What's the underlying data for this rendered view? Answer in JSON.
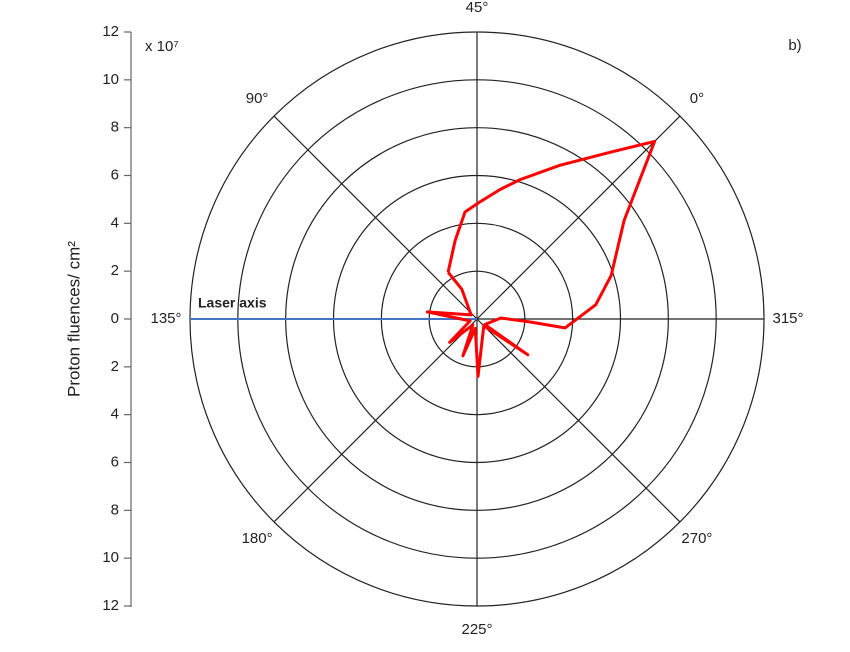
{
  "chart_data": {
    "type": "polar",
    "panel_label": "b)",
    "ylabel": "Proton fluences/ cm²",
    "multiplier": "x 10⁷",
    "annotation": "Laser axis",
    "laser_axis": {
      "theta": 135,
      "color": "#4472c4"
    },
    "rlim": [
      0,
      12
    ],
    "rticks": [
      0,
      2,
      4,
      6,
      8,
      10,
      12
    ],
    "angle_ticks": [
      {
        "value": 0,
        "label": "0°"
      },
      {
        "value": 45,
        "label": "45°"
      },
      {
        "value": 90,
        "label": "90°"
      },
      {
        "value": 135,
        "label": "135°"
      },
      {
        "value": 180,
        "label": "180°"
      },
      {
        "value": 225,
        "label": "225°"
      },
      {
        "value": 270,
        "label": "270°"
      },
      {
        "value": 315,
        "label": "315°"
      }
    ],
    "series": [
      {
        "color": "#ff0000",
        "theta": [
          76.7,
          60.6,
          51.4,
          43.5,
          34.9,
          27.8,
          16.7,
          6.5,
          0,
          348.8,
          333,
          321.8,
          309.2,
          311.8,
          317.5,
          280,
          279.8,
          270,
          226,
          215,
          204,
          190,
          175.4,
          150,
          126.9,
          100,
          72,
          76.7
        ],
        "r": [
          2.3,
          3.4,
          4.5,
          4.9,
          5.5,
          6.1,
          7.3,
          8.9,
          10.5,
          7.4,
          5.9,
          5.0,
          3.7,
          2.2,
          1.0,
          0.4,
          2.6,
          0.4,
          2.4,
          0.4,
          1.65,
          0.3,
          1.5,
          0.3,
          2.1,
          0.3,
          1.4,
          2.3
        ]
      }
    ]
  }
}
